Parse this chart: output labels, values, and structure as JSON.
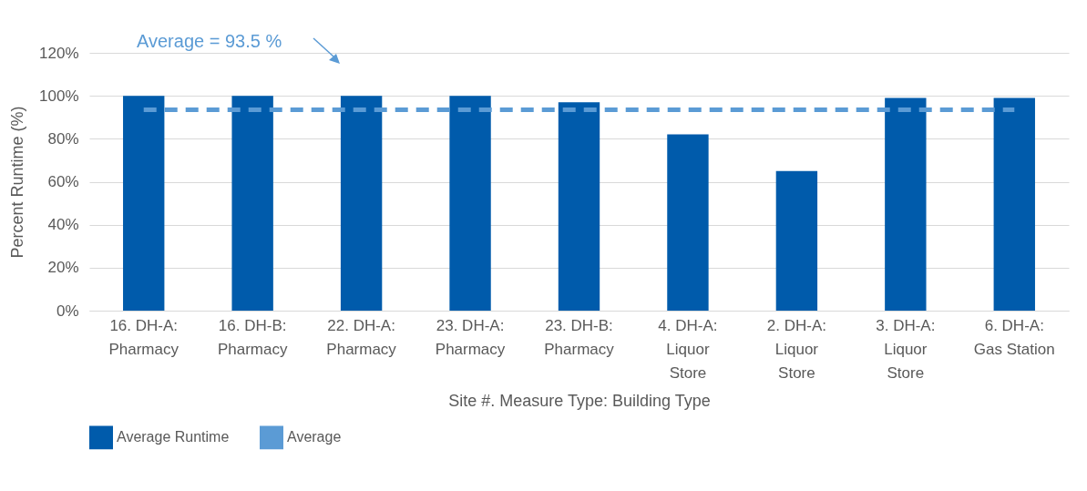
{
  "chart_data": {
    "type": "bar",
    "xlabel": "Site #. Measure Type: Building Type",
    "ylabel": "Percent Runtime (%)",
    "categories": [
      "16. DH-A: Pharmacy",
      "16. DH-B: Pharmacy",
      "22. DH-A: Pharmacy",
      "23. DH-A: Pharmacy",
      "23. DH-B: Pharmacy",
      "4. DH-A: Liquor Store",
      "2. DH-A: Liquor Store",
      "3. DH-A: Liquor Store",
      "6. DH-A: Gas Station"
    ],
    "series": [
      {
        "name": "Average Runtime",
        "color": "#005bab",
        "values": [
          100,
          100,
          100,
          100,
          97,
          82,
          65,
          99,
          99
        ]
      },
      {
        "name": "Average",
        "type": "line",
        "line_style": "dashed",
        "color": "#5b9bd5",
        "values": [
          93.5,
          93.5,
          93.5,
          93.5,
          93.5,
          93.5,
          93.5,
          93.5,
          93.5
        ]
      }
    ],
    "ylim": [
      0,
      120
    ],
    "yticks": [
      {
        "value": 0,
        "label": "0%"
      },
      {
        "value": 20,
        "label": "20%"
      },
      {
        "value": 40,
        "label": "40%"
      },
      {
        "value": 60,
        "label": "60%"
      },
      {
        "value": 80,
        "label": "80%"
      },
      {
        "value": 100,
        "label": "100%"
      },
      {
        "value": 120,
        "label": "120%"
      }
    ],
    "grid": "y",
    "legend": "bottom",
    "annotations": [
      "Average = 93.5 %"
    ]
  }
}
